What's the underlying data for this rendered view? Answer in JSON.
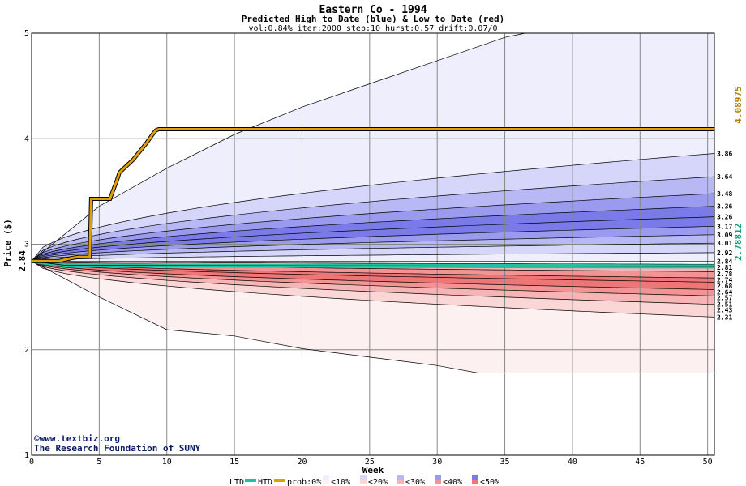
{
  "title": "Eastern Co - 1994",
  "subtitle": "Predicted High to Date (blue) &  Low to Date (red)",
  "meta": "vol:0.84% iter:2000 step:10 hurst:0.57 drift:0.07/0",
  "credit_line1": "©www.textbiz.org",
  "credit_line2": "The Research Foundation of SUNY",
  "legend": {
    "ltd_label": "LTD",
    "htd_label": "HTD",
    "prob_label": "prob:0%",
    "bins": [
      "<10%",
      "<20%",
      "<30%",
      "<40%",
      "<50%"
    ],
    "colors": {
      "ltd": "#20c0a0",
      "htd": "#e0a000",
      "bins_blue": [
        "#eeeefc",
        "#d6d6fa",
        "#b8b8f4",
        "#9a9aee",
        "#7a7ae8"
      ],
      "bins_red": [
        "#fdf0f0",
        "#fbd6d6",
        "#f6b4b4",
        "#f29494",
        "#ee7676"
      ]
    }
  },
  "chart_data": {
    "type": "area",
    "title": "Eastern Co - 1994",
    "subtitle": "Predicted High to Date (blue) &  Low to Date (red)",
    "xlabel": "Week",
    "ylabel": "Price ($)",
    "xlim": [
      0,
      50.5
    ],
    "ylim": [
      1,
      5
    ],
    "xticks": [
      0,
      5,
      10,
      15,
      20,
      25,
      30,
      35,
      40,
      45,
      50
    ],
    "yticks": [
      1,
      2,
      3,
      4,
      5
    ],
    "grid": true,
    "start_price": 2.84,
    "start_label": "2.84",
    "htd_final_label": "4.08975",
    "ltd_final_label": "2.78812",
    "htd_line": {
      "name": "HTD",
      "points": [
        [
          0,
          2.84
        ],
        [
          2,
          2.84
        ],
        [
          3,
          2.87
        ],
        [
          3.5,
          2.88
        ],
        [
          4.3,
          2.88
        ],
        [
          4.4,
          3.43
        ],
        [
          5.8,
          3.43
        ],
        [
          6,
          3.5
        ],
        [
          6.3,
          3.6
        ],
        [
          6.5,
          3.68
        ],
        [
          7,
          3.74
        ],
        [
          7.5,
          3.8
        ],
        [
          8,
          3.88
        ],
        [
          8.5,
          3.96
        ],
        [
          9,
          4.05
        ],
        [
          9.2,
          4.08
        ],
        [
          9.4,
          4.09
        ],
        [
          50.5,
          4.09
        ]
      ]
    },
    "ltd_line": {
      "name": "LTD",
      "points": [
        [
          0,
          2.84
        ],
        [
          2.5,
          2.8
        ],
        [
          50.5,
          2.79
        ]
      ]
    },
    "high_quantiles": [
      {
        "bin": 0,
        "end": 5.0,
        "end_label": "",
        "curve": [
          [
            0,
            2.84
          ],
          [
            5,
            3.36
          ],
          [
            10,
            3.72
          ],
          [
            15,
            4.04
          ],
          [
            20,
            4.3
          ],
          [
            25,
            4.52
          ],
          [
            30,
            4.74
          ],
          [
            35,
            4.96
          ],
          [
            36.5,
            5.0
          ],
          [
            50.5,
            5.0
          ]
        ]
      },
      {
        "bin": 1,
        "end": 3.86,
        "end_label": "3.86"
      },
      {
        "bin": 2,
        "end": 3.64,
        "end_label": "3.64"
      },
      {
        "bin": 3,
        "end": 3.48,
        "end_label": "3.48"
      },
      {
        "bin": 4,
        "end": 3.36,
        "end_label": "3.36"
      },
      {
        "bin": 4,
        "end": 3.26,
        "end_label": "3.26"
      },
      {
        "bin": 3,
        "end": 3.17,
        "end_label": "3.17"
      },
      {
        "bin": 2,
        "end": 3.09,
        "end_label": "3.09"
      },
      {
        "bin": 1,
        "end": 3.01,
        "end_label": "3.01"
      },
      {
        "bin": 0,
        "end": 2.92,
        "end_label": "2.92"
      },
      {
        "bin": 0,
        "end": 2.84,
        "end_label": "2.84"
      }
    ],
    "low_quantiles": [
      {
        "bin": 0,
        "end": 2.81,
        "end_label": "2.81"
      },
      {
        "bin": 1,
        "end": 2.78,
        "end_label": "2.78"
      },
      {
        "bin": 2,
        "end": 2.74,
        "end_label": "2.74"
      },
      {
        "bin": 3,
        "end": 2.68,
        "end_label": "2.68"
      },
      {
        "bin": 4,
        "end": 2.64,
        "end_label": "2.64"
      },
      {
        "bin": 4,
        "end": 2.57,
        "end_label": "2.57"
      },
      {
        "bin": 3,
        "end": 2.51,
        "end_label": "2.51"
      },
      {
        "bin": 2,
        "end": 2.43,
        "end_label": "2.43"
      },
      {
        "bin": 1,
        "end": 2.31,
        "end_label": "2.31"
      },
      {
        "bin": 0,
        "end": 1.78,
        "end_label": "",
        "curve": [
          [
            0,
            2.84
          ],
          [
            5,
            2.5
          ],
          [
            10,
            2.19
          ],
          [
            15,
            2.13
          ],
          [
            20,
            2.01
          ],
          [
            25,
            1.93
          ],
          [
            30,
            1.85
          ],
          [
            33,
            1.78
          ],
          [
            50.5,
            1.78
          ]
        ]
      }
    ]
  }
}
